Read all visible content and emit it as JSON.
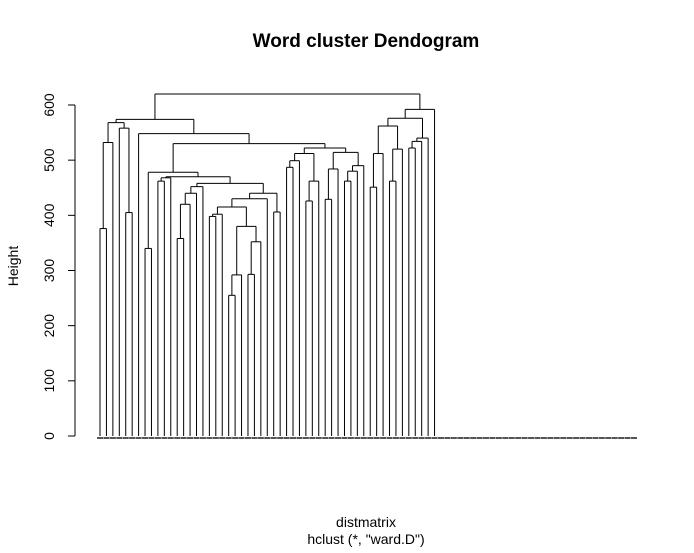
{
  "chart_data": {
    "type": "dendrogram",
    "title": "Word cluster Dendogram",
    "xlabel": "distmatrix",
    "sublabel": "hclust (*, \"ward.D\")",
    "ylabel": "Height",
    "ylim": [
      0,
      600
    ],
    "y_ticks": [
      0,
      100,
      200,
      300,
      400,
      500,
      600
    ],
    "grid": false,
    "leaf_count": 84,
    "leaf_labels_legible": false,
    "merge_heights": [
      {
        "left": [
          1,
          2
        ],
        "height": 376
      },
      {
        "left": [
          0,
          1
        ],
        "height": 532
      },
      {
        "left": [
          3,
          4
        ],
        "height": 405
      },
      {
        "left": [
          5,
          6
        ],
        "height": 340
      },
      {
        "left": [
          7,
          8
        ],
        "height": 462
      },
      {
        "left": [
          9,
          10
        ],
        "height": 358
      },
      {
        "left": [
          11,
          12
        ],
        "height": 255
      },
      {
        "left": [
          13,
          14
        ],
        "height": 292
      },
      {
        "left": [
          15,
          16
        ],
        "height": 293
      },
      {
        "left": [
          17,
          18
        ],
        "height": 398
      },
      {
        "left": [
          19,
          20
        ],
        "height": 406
      },
      {
        "left": [
          21,
          22
        ],
        "height": 487
      },
      {
        "left": [
          23,
          24
        ],
        "height": 426
      },
      {
        "left": [
          25,
          26
        ],
        "height": 429
      },
      {
        "left": [
          27,
          28
        ],
        "height": 462
      },
      {
        "left": [
          29,
          30
        ],
        "height": 451
      },
      {
        "left": [
          31,
          32
        ],
        "height": 523
      }
    ],
    "top_levels": {
      "root": 620,
      "left_group": 568,
      "middle_group": 548,
      "inner_group": 530,
      "right_group": 592
    }
  }
}
